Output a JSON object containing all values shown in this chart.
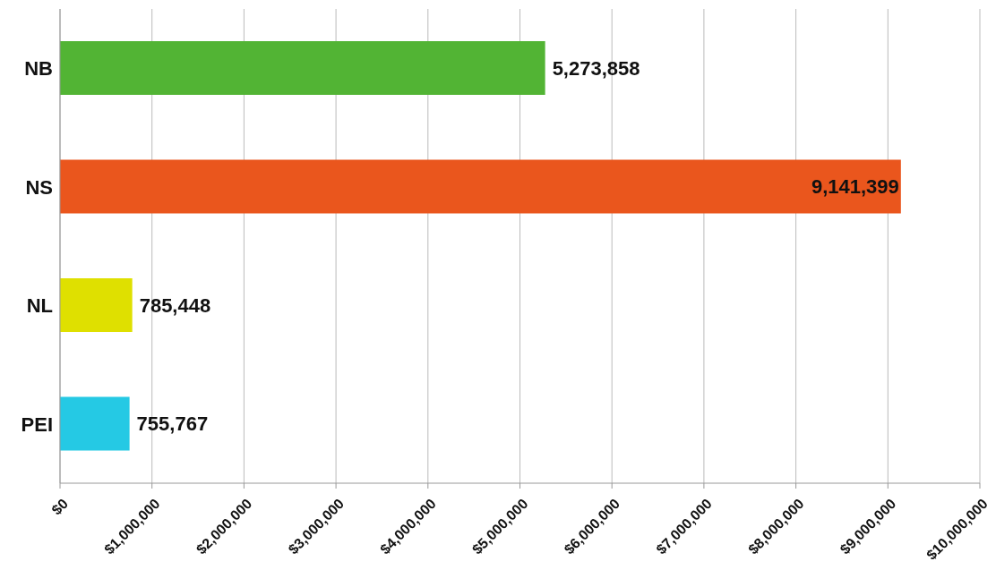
{
  "chart_data": {
    "type": "bar",
    "orientation": "horizontal",
    "categories": [
      "NB",
      "NS",
      "NL",
      "PEI"
    ],
    "values": [
      5273858,
      9141399,
      785448,
      755767
    ],
    "colors": [
      "#52b434",
      "#ea561d",
      "#dfe000",
      "#25c9e4"
    ],
    "value_labels": [
      "5,273,858",
      "9,141,399",
      "785,448",
      "755,767"
    ],
    "xlim": [
      0,
      10000000
    ],
    "xticks": [
      {
        "value": 0,
        "label": "$0"
      },
      {
        "value": 1000000,
        "label": "$1,000,000"
      },
      {
        "value": 2000000,
        "label": "$2,000,000"
      },
      {
        "value": 3000000,
        "label": "$3,000,000"
      },
      {
        "value": 4000000,
        "label": "$4,000,000"
      },
      {
        "value": 5000000,
        "label": "$5,000,000"
      },
      {
        "value": 6000000,
        "label": "$6,000,000"
      },
      {
        "value": 7000000,
        "label": "$7,000,000"
      },
      {
        "value": 8000000,
        "label": "$8,000,000"
      },
      {
        "value": 9000000,
        "label": "$9,000,000"
      },
      {
        "value": 10000000,
        "label": "$10,000,000"
      }
    ],
    "grid": "x"
  }
}
